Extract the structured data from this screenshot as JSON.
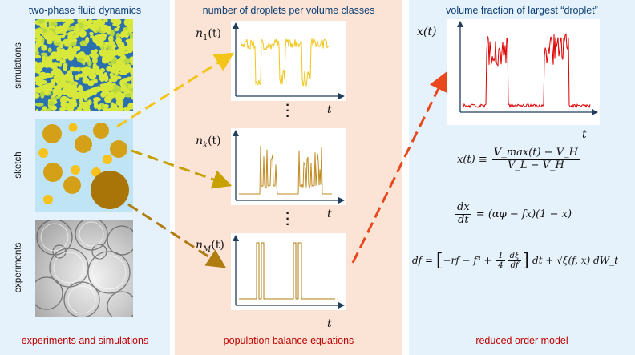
{
  "left_panel": {
    "title": "two-phase fluid dynamics",
    "footer": "experiments and simulations",
    "row_labels": {
      "simulations": "simulations",
      "sketch": "sketch",
      "experiments": "experiments"
    }
  },
  "middle_panel": {
    "title": "number of droplets per volume classes",
    "footer": "population balance equations",
    "plots": [
      {
        "label_base": "n",
        "label_sub": "1",
        "label_arg": "(t)",
        "xlabel": "t"
      },
      {
        "label_base": "n",
        "label_sub": "k",
        "label_arg": "(t)",
        "xlabel": "t"
      },
      {
        "label_base": "n",
        "label_sub": "M",
        "label_arg": "(t)",
        "xlabel": "t"
      }
    ]
  },
  "right_panel": {
    "title": "volume fraction of largest “droplet”",
    "footer": "reduced order model",
    "plot": {
      "ylabel": "x(t)",
      "xlabel": "t"
    },
    "equations": {
      "eq1": {
        "lhs": "x(t) ≡",
        "num": "V_max(t) − V_H",
        "den": "V_L − V_H"
      },
      "eq2": {
        "num": "dx",
        "den": "dt",
        "rhs": "= (αφ − fx)(1 − x)"
      },
      "eq3": {
        "lhs": "df =",
        "bracket": "−rf − f³ +",
        "frac_num": "1",
        "frac_den": "4",
        "inner_num": "dξ",
        "inner_den": "df",
        "rhs": "dt + √ξ(f, x) dW_t"
      }
    }
  },
  "colors": {
    "title_blue": "#0d3f74",
    "footer_red": "#c00000",
    "arrow_yellow": "#f2c518",
    "arrow_gold": "#c8a000",
    "arrow_brown": "#b07c10",
    "arrow_red": "#e8481c",
    "trace_yellow": "#f2c518",
    "trace_brown": "#c08a20",
    "trace_red": "#e00000"
  }
}
